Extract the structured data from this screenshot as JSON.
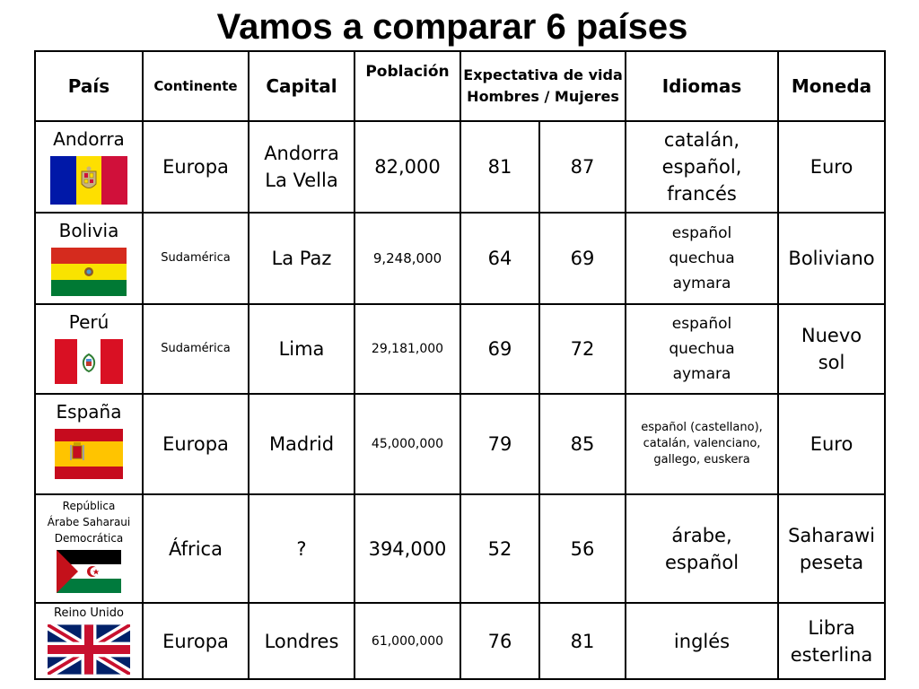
{
  "title": "Vamos a comparar 6 países",
  "headers": {
    "pais": "País",
    "continente": "Continente",
    "capital": "Capital",
    "poblacion": "Población",
    "expectativa_1": "Expectativa de vida",
    "expectativa_2": "Hombres / Mujeres",
    "idiomas": "Idiomas",
    "moneda": "Moneda"
  },
  "rows": [
    {
      "pais": "Andorra",
      "flag": "andorra-flag",
      "continente": "Europa",
      "capital_1": "Andorra",
      "capital_2": "La Vella",
      "poblacion": "82,000",
      "hombres": "81",
      "mujeres": "87",
      "idiomas_1": "catalán,",
      "idiomas_2": "español,",
      "idiomas_3": "francés",
      "moneda_1": "Euro"
    },
    {
      "pais": "Bolivia",
      "flag": "bolivia-flag",
      "continente": "Sudamérica",
      "capital_1": "La Paz",
      "poblacion": "9,248,000",
      "hombres": "64",
      "mujeres": "69",
      "idiomas_1": "español",
      "idiomas_2": "quechua",
      "idiomas_3": "aymara",
      "moneda_1": "Boliviano"
    },
    {
      "pais": "Perú",
      "flag": "peru-flag",
      "continente": "Sudamérica",
      "capital_1": "Lima",
      "poblacion": "29,181,000",
      "hombres": "69",
      "mujeres": "72",
      "idiomas_1": "español",
      "idiomas_2": "quechua",
      "idiomas_3": "aymara",
      "moneda_1": "Nuevo",
      "moneda_2": "sol"
    },
    {
      "pais": "España",
      "flag": "spain-flag",
      "continente": "Europa",
      "capital_1": "Madrid",
      "poblacion": "45,000,000",
      "hombres": "79",
      "mujeres": "85",
      "idiomas_1": "español (castellano),",
      "idiomas_2": "catalán, valenciano,",
      "idiomas_3": "gallego, euskera",
      "moneda_1": "Euro"
    },
    {
      "pais_1": "República",
      "pais_2": "Árabe Saharaui",
      "pais_3": "Democrática",
      "flag": "sahrawi-flag",
      "continente": "África",
      "capital_1": "?",
      "poblacion": "394,000",
      "hombres": "52",
      "mujeres": "56",
      "idiomas_1": "árabe,",
      "idiomas_2": "español",
      "moneda_1": "Saharawi",
      "moneda_2": "peseta"
    },
    {
      "pais": "Reino Unido",
      "flag": "uk-flag",
      "continente": "Europa",
      "capital_1": "Londres",
      "poblacion": "61,000,000",
      "hombres": "76",
      "mujeres": "81",
      "idiomas_1": "inglés",
      "moneda_1": "Libra",
      "moneda_2": "esterlina"
    }
  ]
}
